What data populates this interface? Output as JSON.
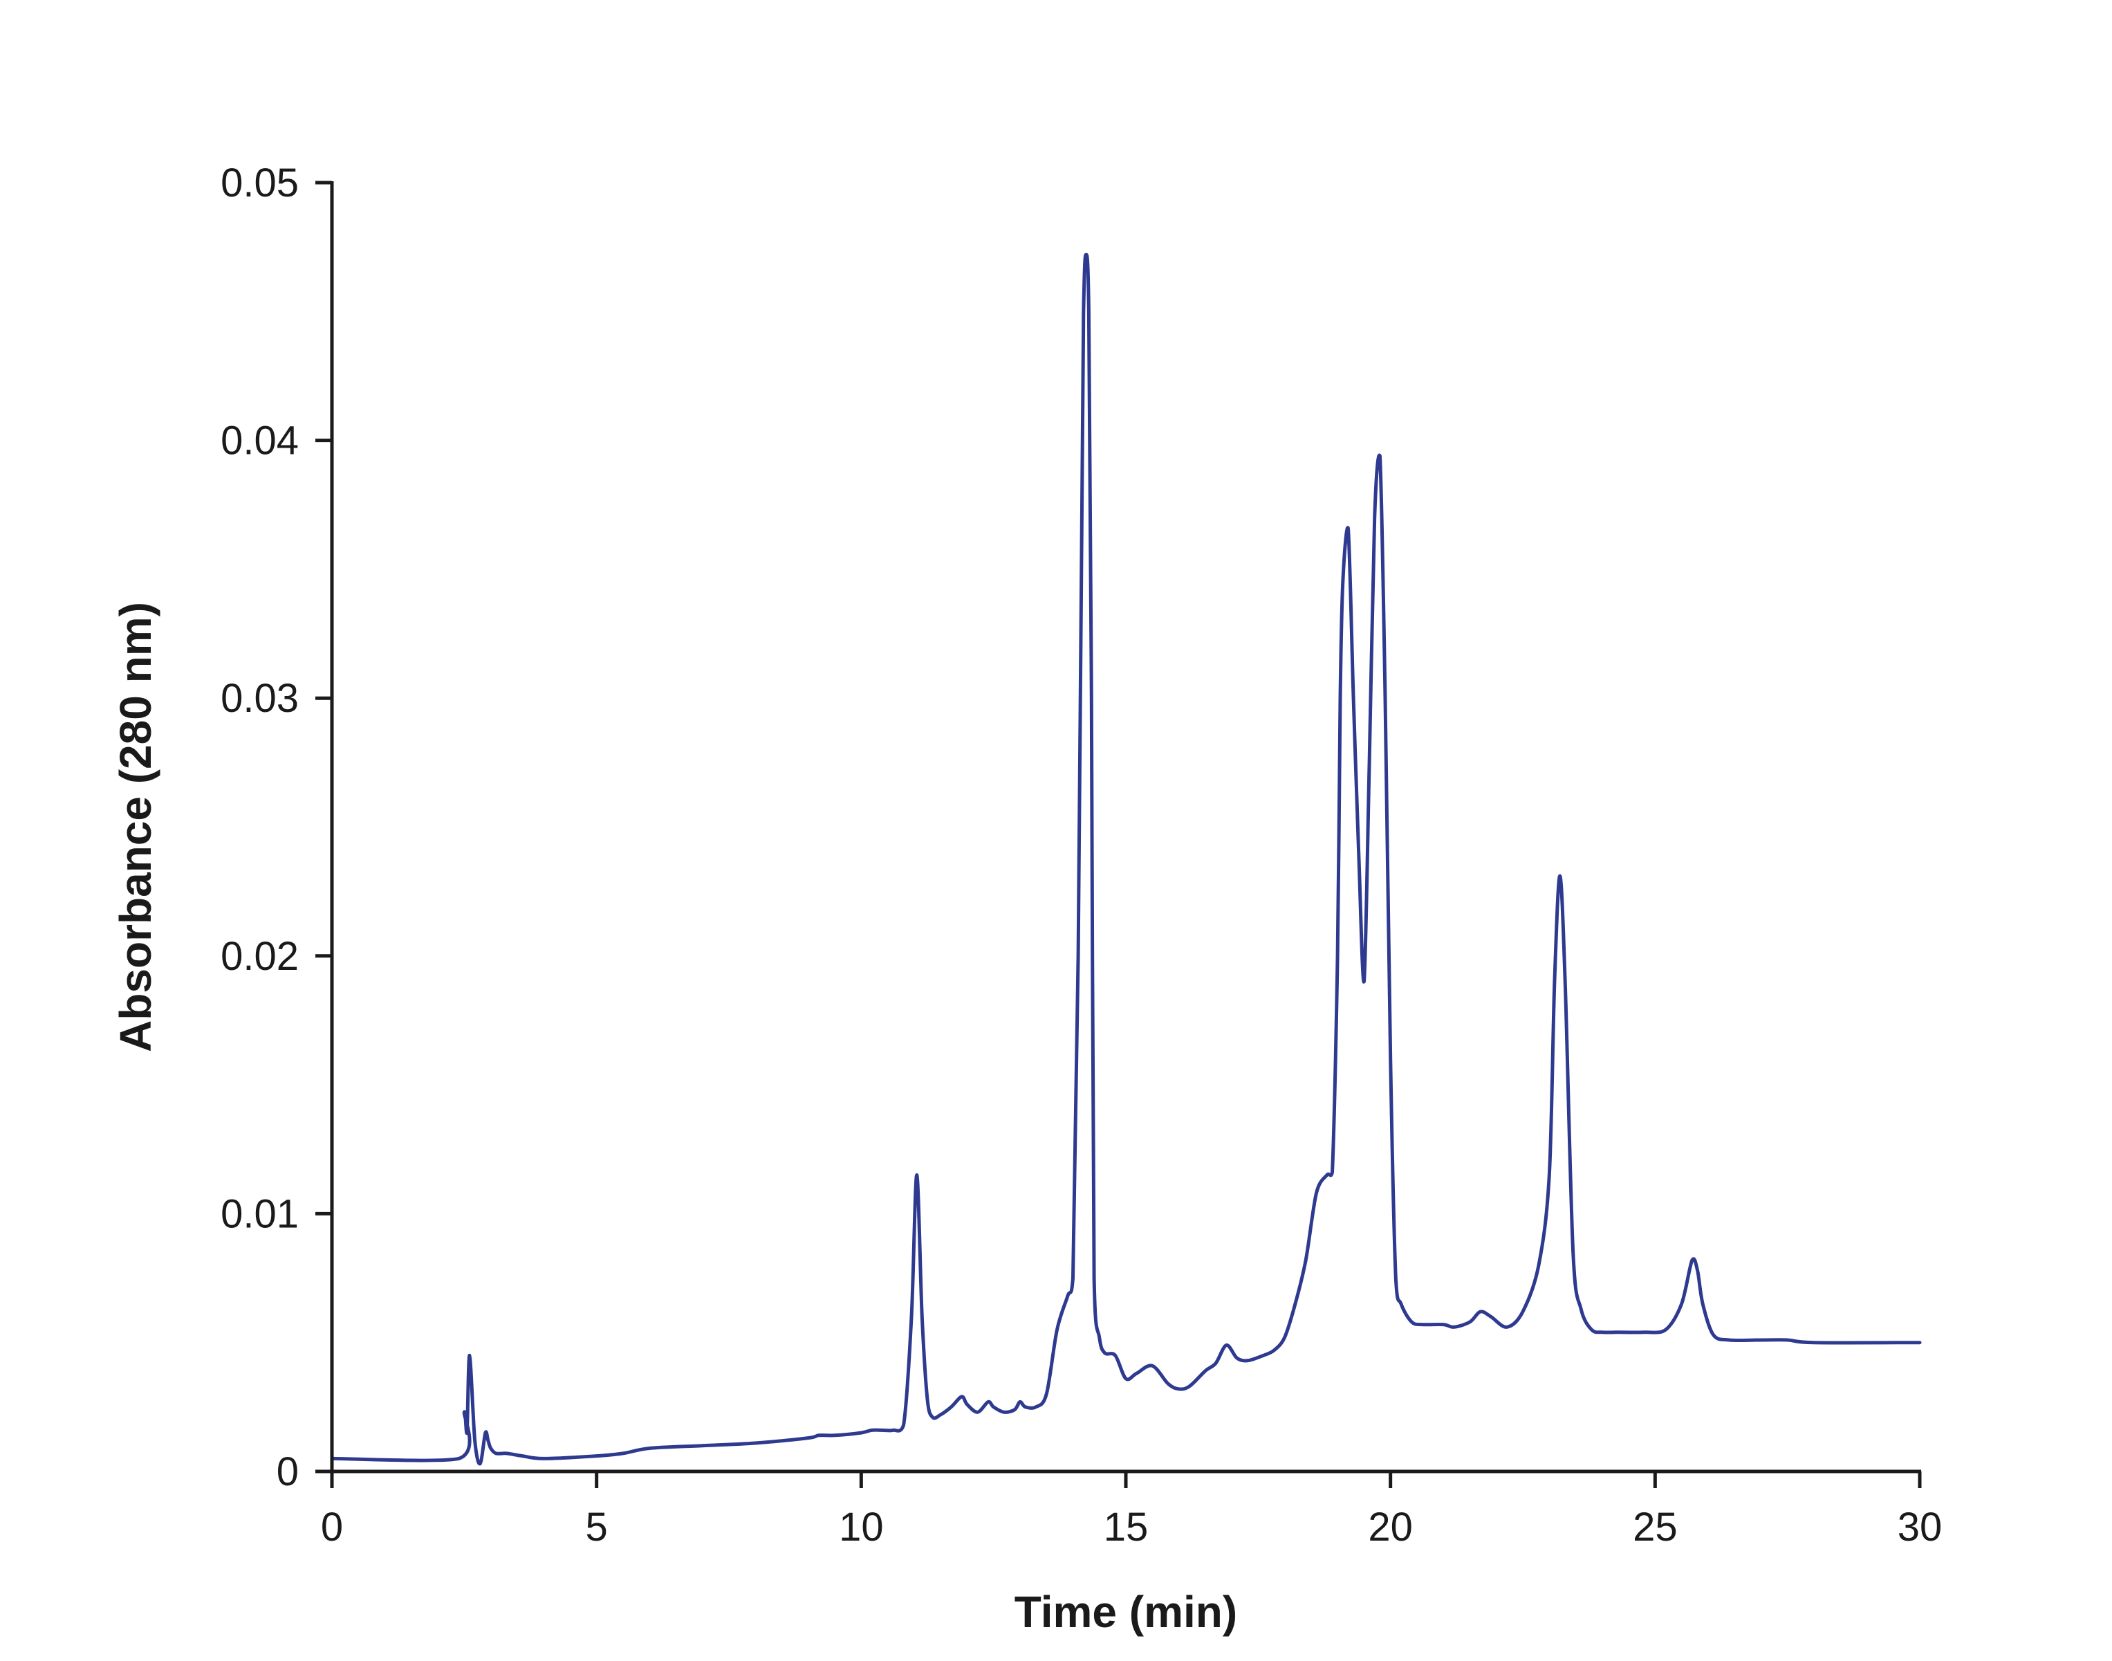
{
  "chart_data": {
    "type": "line",
    "xlabel": "Time (min)",
    "ylabel": "Absorbance (280 nm)",
    "xlim": [
      0,
      30
    ],
    "ylim": [
      0,
      0.05
    ],
    "xticks": [
      0,
      5,
      10,
      15,
      20,
      25,
      30
    ],
    "xtick_labels": [
      "0",
      "5",
      "10",
      "15",
      "20",
      "25",
      "30"
    ],
    "yticks": [
      0,
      0.01,
      0.02,
      0.03,
      0.04,
      0.05
    ],
    "ytick_labels": [
      "0",
      "0.01",
      "0.02",
      "0.03",
      "0.04",
      "0.05"
    ],
    "grid": false,
    "line_color": "#2e3a8f",
    "series": [
      {
        "x": [
          0,
          2.4,
          2.5,
          2.55,
          2.6,
          2.7,
          2.8,
          2.9,
          2.95,
          3.0,
          3.1,
          3.3,
          3.6,
          4.0,
          5.0,
          5.5,
          6.0,
          7.0,
          8.0,
          9.0,
          9.2,
          9.5,
          10.0,
          10.2,
          10.4,
          10.6,
          10.8,
          10.95,
          11.05,
          11.15,
          11.25,
          11.35,
          11.5,
          11.7,
          11.9,
          12.0,
          12.2,
          12.4,
          12.5,
          12.7,
          12.9,
          13.0,
          13.1,
          13.3,
          13.5,
          13.7,
          13.9,
          14.0,
          14.1,
          14.2,
          14.25,
          14.3,
          14.35,
          14.4,
          14.5,
          14.6,
          14.8,
          15.0,
          15.2,
          15.5,
          15.8,
          16.0,
          16.2,
          16.5,
          16.7,
          16.9,
          17.1,
          17.3,
          17.6,
          17.8,
          18.0,
          18.2,
          18.4,
          18.6,
          18.8,
          18.9,
          19.0,
          19.05,
          19.1,
          19.2,
          19.3,
          19.4,
          19.5,
          19.6,
          19.7,
          19.8,
          19.9,
          20.0,
          20.1,
          20.2,
          20.4,
          20.6,
          21.0,
          21.2,
          21.5,
          21.7,
          21.9,
          22.2,
          22.5,
          22.8,
          23.0,
          23.1,
          23.2,
          23.3,
          23.45,
          23.6,
          23.8,
          24.0,
          24.3,
          24.8,
          25.2,
          25.5,
          25.7,
          25.8,
          25.9,
          26.1,
          26.4,
          27.0,
          27.5,
          28.0,
          30.0
        ],
        "y": [
          0.0005,
          0.0005,
          0.0023,
          0.0015,
          0.0045,
          0.0012,
          0.0003,
          0.0015,
          0.0012,
          0.0009,
          0.0007,
          0.0007,
          0.0006,
          0.0005,
          0.0006,
          0.0007,
          0.0009,
          0.001,
          0.0011,
          0.0013,
          0.0014,
          0.0014,
          0.0015,
          0.0016,
          0.0016,
          0.0016,
          0.0018,
          0.006,
          0.0115,
          0.006,
          0.0028,
          0.0021,
          0.0022,
          0.0025,
          0.0029,
          0.0026,
          0.0023,
          0.0027,
          0.0025,
          0.0023,
          0.0024,
          0.0027,
          0.0025,
          0.0025,
          0.003,
          0.0055,
          0.0068,
          0.0075,
          0.02,
          0.045,
          0.0472,
          0.045,
          0.03,
          0.0075,
          0.0052,
          0.0046,
          0.0045,
          0.0036,
          0.0038,
          0.0041,
          0.0034,
          0.0032,
          0.0033,
          0.0039,
          0.0042,
          0.0049,
          0.0044,
          0.0043,
          0.0045,
          0.0047,
          0.0052,
          0.0065,
          0.0082,
          0.0108,
          0.0115,
          0.0116,
          0.02,
          0.03,
          0.0345,
          0.0366,
          0.03,
          0.024,
          0.019,
          0.0275,
          0.037,
          0.0394,
          0.03,
          0.016,
          0.0075,
          0.0065,
          0.0058,
          0.0057,
          0.0057,
          0.0056,
          0.0058,
          0.0062,
          0.006,
          0.0056,
          0.0062,
          0.008,
          0.0115,
          0.019,
          0.0231,
          0.019,
          0.0085,
          0.0063,
          0.0055,
          0.0054,
          0.0054,
          0.0054,
          0.0055,
          0.0065,
          0.0082,
          0.0078,
          0.0065,
          0.0053,
          0.0051,
          0.0051,
          0.0051,
          0.005,
          0.005
        ]
      }
    ]
  }
}
